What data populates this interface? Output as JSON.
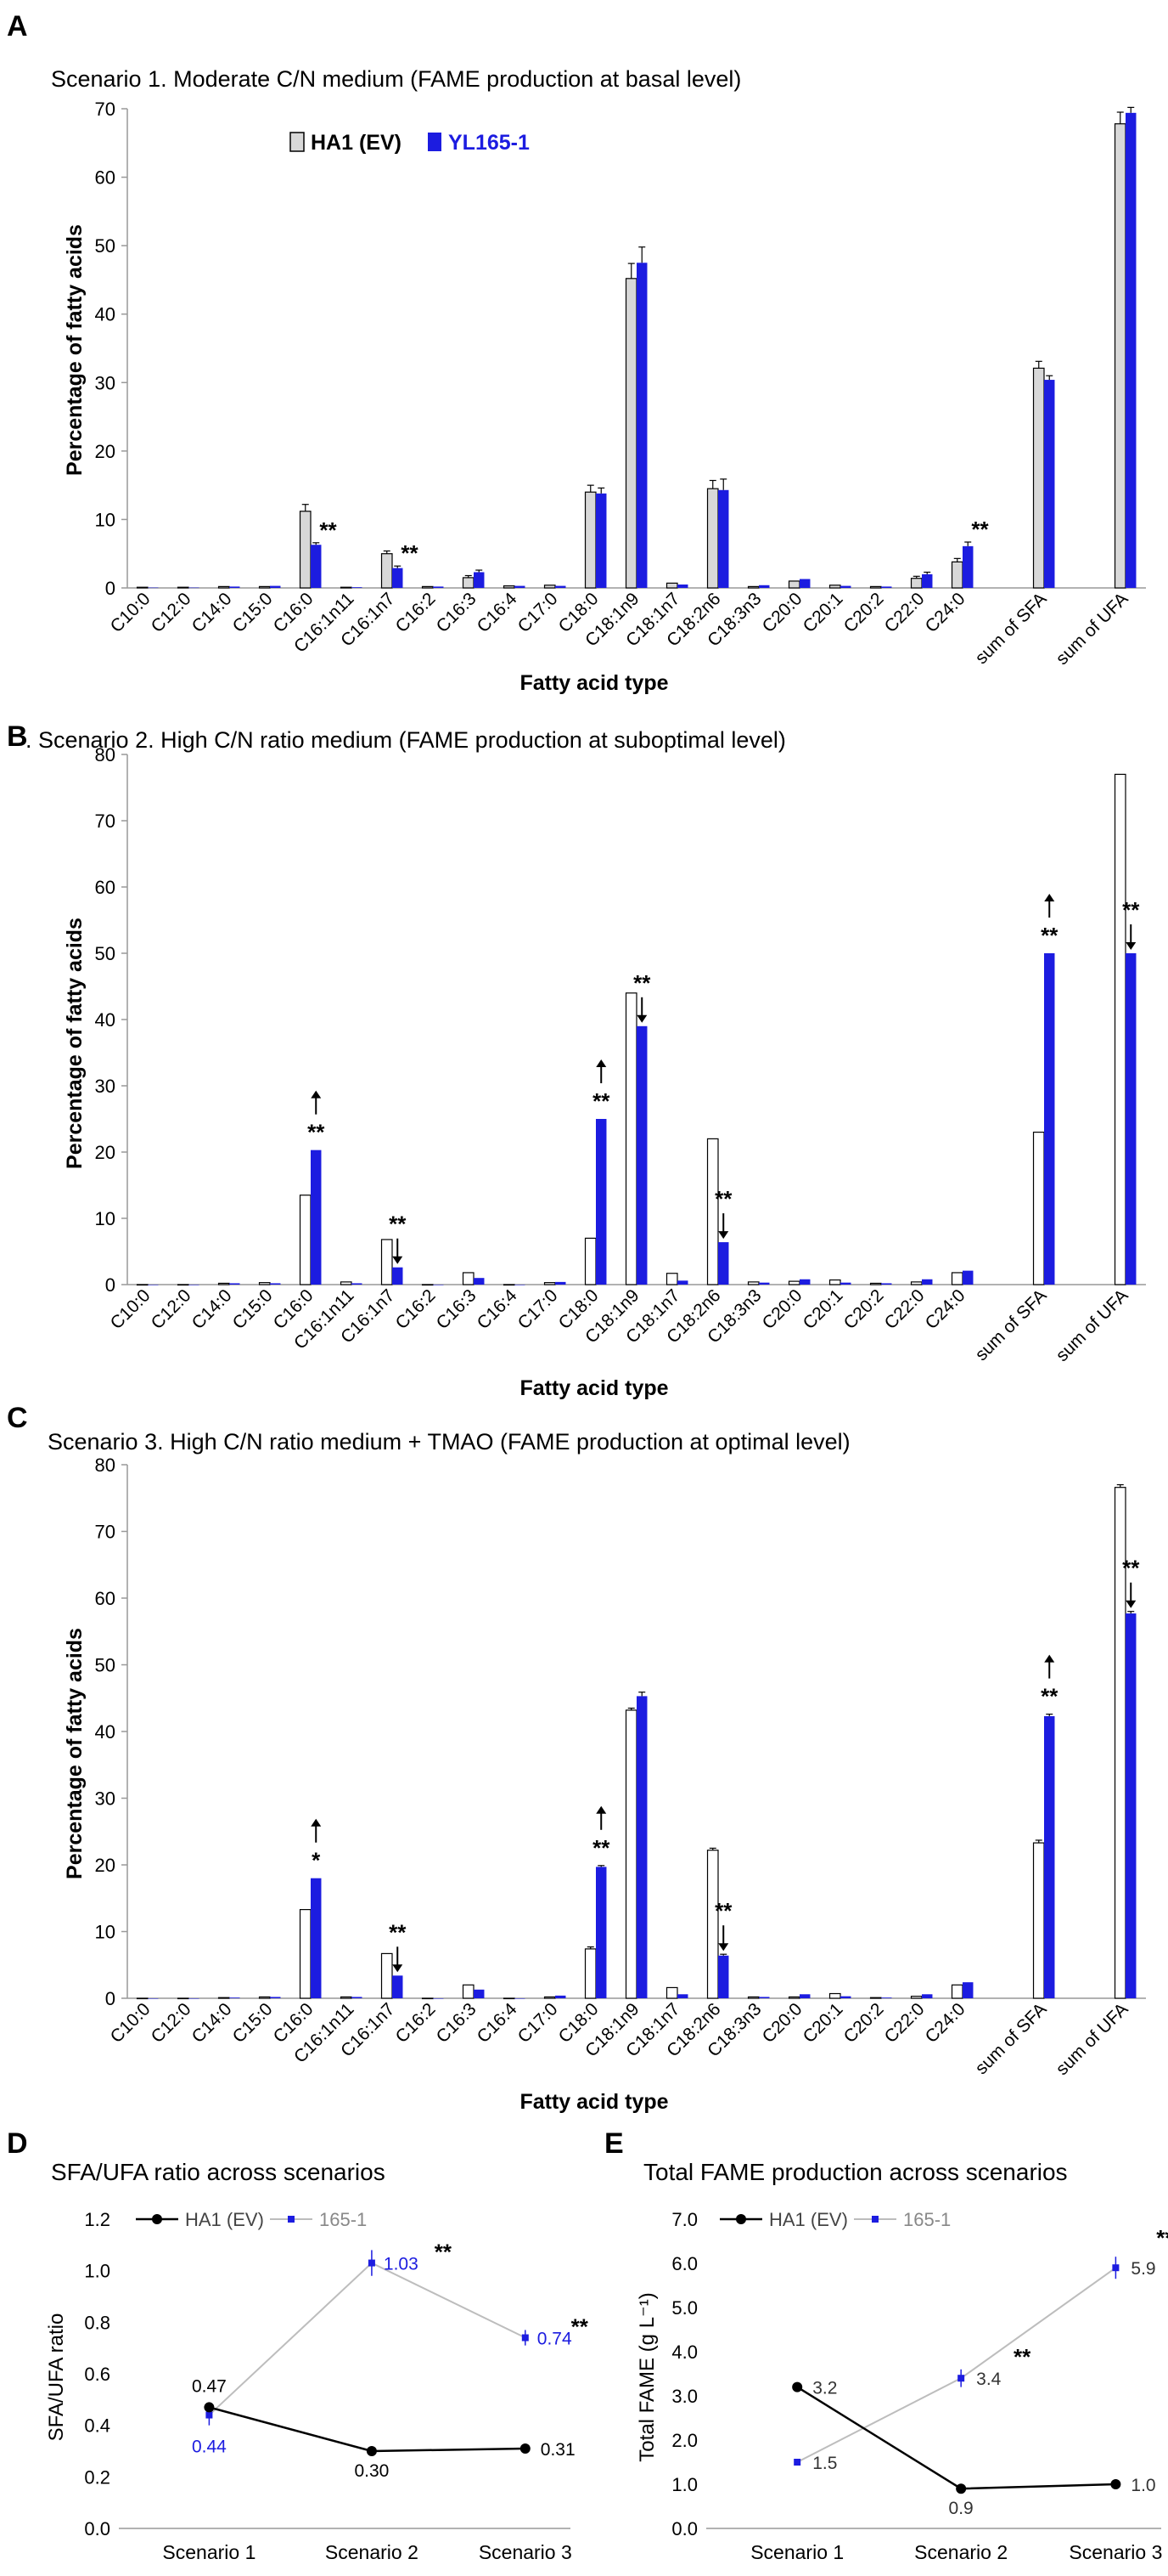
{
  "colors": {
    "ev": "#d8d8d8",
    "mut": "#1c1ce0",
    "line_ev": "#000000",
    "line_mut": "#bdbdbd",
    "mut_label": "#1c1ce0"
  },
  "chart_data": [
    {
      "panel": "A",
      "type": "bar",
      "title": "Scenario 1. Moderate C/N medium (FAME production at basal level)",
      "xlabel": "Fatty acid type",
      "ylabel": "Percentage of fatty acids",
      "ylim": [
        0,
        70
      ],
      "yticks": [
        "0",
        "10",
        "20",
        "30",
        "40",
        "50",
        "60",
        "70"
      ],
      "legend": [
        {
          "name": "HA1 (EV)"
        },
        {
          "name": "YL165-1"
        }
      ],
      "categories": [
        "C10:0",
        "C12:0",
        "C14:0",
        "C15:0",
        "C16:0",
        "C16:1n11",
        "C16:1n7",
        "C16:2",
        "C16:3",
        "C16:4",
        "C17:0",
        "C18:0",
        "C18:1n9",
        "C18:1n7",
        "C18:2n6",
        "C18:3n3",
        "C20:0",
        "C20:1",
        "C20:2",
        "C22:0",
        "C24:0",
        "",
        "sum of SFA",
        "",
        "sum of UFA"
      ],
      "series": [
        {
          "name": "HA1 (EV)",
          "values": [
            0.1,
            0.1,
            0.2,
            0.2,
            11.2,
            0.1,
            5.0,
            0.2,
            1.5,
            0.3,
            0.4,
            14.0,
            45.2,
            0.7,
            14.5,
            0.2,
            1.0,
            0.4,
            0.2,
            1.4,
            3.8,
            null,
            32.1,
            null,
            67.8
          ],
          "errors": [
            0,
            0,
            0,
            0,
            1.0,
            0,
            0.4,
            0,
            0.3,
            0,
            0,
            1.0,
            2.2,
            0,
            1.2,
            0,
            0,
            0,
            0,
            0.3,
            0.5,
            null,
            1.0,
            null,
            1.7
          ]
        },
        {
          "name": "YL165-1",
          "values": [
            0.05,
            0.05,
            0.2,
            0.3,
            6.3,
            0.1,
            2.9,
            0.2,
            2.3,
            0.3,
            0.3,
            13.8,
            47.5,
            0.5,
            14.3,
            0.4,
            1.3,
            0.3,
            0.2,
            2.0,
            6.1,
            null,
            30.4,
            null,
            69.4
          ],
          "errors": [
            0,
            0,
            0,
            0,
            0.3,
            0,
            0.3,
            0,
            0.3,
            0,
            0,
            0.8,
            2.3,
            0,
            1.6,
            0,
            0,
            0,
            0,
            0.3,
            0.6,
            null,
            0.6,
            null,
            0.8
          ]
        }
      ],
      "annotations": [
        {
          "index": 4,
          "text": "**",
          "arrow": null
        },
        {
          "index": 6,
          "text": "**",
          "arrow": null
        },
        {
          "index": 20,
          "text": "**",
          "arrow": null
        }
      ]
    },
    {
      "panel": "B",
      "type": "bar",
      "title": ". Scenario 2. High C/N ratio medium (FAME production at suboptimal level)",
      "xlabel": "Fatty acid type",
      "ylabel": "Percentage of fatty acids",
      "ylim": [
        0,
        80
      ],
      "yticks": [
        "0",
        "10",
        "20",
        "30",
        "40",
        "50",
        "60",
        "70",
        "80"
      ],
      "legend": [],
      "categories": [
        "C10:0",
        "C12:0",
        "C14:0",
        "C15:0",
        "C16:0",
        "C16:1n11",
        "C16:1n7",
        "C16:2",
        "C16:3",
        "C16:4",
        "C17:0",
        "C18:0",
        "C18:1n9",
        "C18:1n7",
        "C18:2n6",
        "C18:3n3",
        "C20:0",
        "C20:1",
        "C20:2",
        "C22:0",
        "C24:0",
        "",
        "sum of SFA",
        "",
        "sum of UFA"
      ],
      "series": [
        {
          "name": "HA1 (EV)",
          "values": [
            0,
            0,
            0.2,
            0.3,
            13.5,
            0.4,
            6.8,
            0,
            1.8,
            0,
            0.3,
            7.0,
            44.0,
            1.7,
            22.0,
            0.4,
            0.5,
            0.7,
            0.2,
            0.4,
            1.8,
            null,
            23.0,
            null,
            77.0
          ],
          "errors": [
            0,
            0,
            0,
            0,
            0,
            0,
            0,
            0,
            0,
            0,
            0,
            0,
            0,
            0,
            0,
            0,
            0,
            0,
            0,
            0,
            0,
            null,
            0,
            null,
            0
          ]
        },
        {
          "name": "YL165-1",
          "values": [
            0,
            0,
            0.2,
            0.2,
            20.3,
            0.2,
            2.6,
            0,
            1.0,
            0,
            0.4,
            25.0,
            39.0,
            0.6,
            6.4,
            0.3,
            0.8,
            0.3,
            0.2,
            0.8,
            2.1,
            null,
            50.0,
            null,
            50.0
          ],
          "errors": [
            0,
            0,
            0,
            0,
            0,
            0,
            0,
            0,
            0,
            0,
            0,
            0,
            0,
            0,
            0,
            0,
            0,
            0,
            0,
            0,
            0,
            null,
            0,
            null,
            0
          ]
        }
      ],
      "annotations": [
        {
          "index": 4,
          "text": "**",
          "arrow": "up"
        },
        {
          "index": 6,
          "text": "**",
          "arrow": "down"
        },
        {
          "index": 11,
          "text": "**",
          "arrow": "up"
        },
        {
          "index": 12,
          "text": "**",
          "arrow": "down"
        },
        {
          "index": 14,
          "text": "**",
          "arrow": "down"
        },
        {
          "index": 22,
          "text": "**",
          "arrow": "up"
        },
        {
          "index": 24,
          "text": "**",
          "arrow": "down"
        }
      ]
    },
    {
      "panel": "C",
      "type": "bar",
      "title": "Scenario 3. High C/N ratio medium + TMAO (FAME production at optimal level)",
      "xlabel": "Fatty acid type",
      "ylabel": "Percentage of fatty acids",
      "ylim": [
        0,
        80
      ],
      "yticks": [
        "0",
        "10",
        "20",
        "30",
        "40",
        "50",
        "60",
        "70",
        "80"
      ],
      "legend": [],
      "categories": [
        "C10:0",
        "C12:0",
        "C14:0",
        "C15:0",
        "C16:0",
        "C16:1n11",
        "C16:1n7",
        "C16:2",
        "C16:3",
        "C16:4",
        "C17:0",
        "C18:0",
        "C18:1n9",
        "C18:1n7",
        "C18:2n6",
        "C18:3n3",
        "C20:0",
        "C20:1",
        "C20:2",
        "C22:0",
        "C24:0",
        "",
        "sum of SFA",
        "",
        "sum of UFA"
      ],
      "series": [
        {
          "name": "HA1 (EV)",
          "values": [
            0,
            0,
            0.1,
            0.2,
            13.3,
            0.2,
            6.7,
            0,
            2.0,
            0,
            0.2,
            7.4,
            43.2,
            1.6,
            22.2,
            0.2,
            0.2,
            0.7,
            0.1,
            0.3,
            2.0,
            null,
            23.3,
            null,
            76.6
          ],
          "errors": [
            0,
            0,
            0,
            0,
            0,
            0,
            0,
            0,
            0,
            0,
            0,
            0.3,
            0.3,
            0,
            0.3,
            0,
            0,
            0,
            0,
            0,
            0,
            null,
            0.4,
            null,
            0.4
          ]
        },
        {
          "name": "YL165-1",
          "values": [
            0,
            0,
            0.1,
            0.2,
            18.0,
            0.2,
            3.4,
            0,
            1.3,
            0,
            0.4,
            19.7,
            45.3,
            0.6,
            6.4,
            0.2,
            0.6,
            0.3,
            0.1,
            0.6,
            2.4,
            null,
            42.3,
            null,
            57.7
          ],
          "errors": [
            0,
            0,
            0,
            0,
            0,
            0,
            0,
            0,
            0,
            0,
            0,
            0.2,
            0.6,
            0,
            0.2,
            0,
            0,
            0,
            0,
            0,
            0,
            null,
            0.3,
            null,
            0.3
          ]
        }
      ],
      "annotations": [
        {
          "index": 4,
          "text": "*",
          "arrow": "up"
        },
        {
          "index": 6,
          "text": "**",
          "arrow": "down"
        },
        {
          "index": 11,
          "text": "**",
          "arrow": "up"
        },
        {
          "index": 14,
          "text": "**",
          "arrow": "down"
        },
        {
          "index": 22,
          "text": "**",
          "arrow": "up"
        },
        {
          "index": 24,
          "text": "**",
          "arrow": "down"
        }
      ]
    },
    {
      "panel": "D",
      "type": "line",
      "title": "SFA/UFA ratio across scenarios",
      "xlabel": "",
      "ylabel": "SFA/UFA ratio",
      "categories": [
        "Scenario 1",
        "Scenario 2",
        "Scenario 3"
      ],
      "ylim": [
        0,
        1.2
      ],
      "yticks": [
        "0.0",
        "0.2",
        "0.4",
        "0.6",
        "0.8",
        "1.0",
        "1.2"
      ],
      "legend": [
        {
          "name": "HA1 (EV)"
        },
        {
          "name": "165-1"
        }
      ],
      "series": [
        {
          "name": "HA1 (EV)",
          "values": [
            0.47,
            0.3,
            0.31
          ],
          "labels": [
            "0.47",
            "0.30",
            "0.31"
          ],
          "errors": [
            0,
            0,
            0
          ]
        },
        {
          "name": "165-1",
          "values": [
            0.44,
            1.03,
            0.74
          ],
          "labels": [
            "0.44",
            "1.03",
            "0.74"
          ],
          "errors": [
            0.04,
            0.05,
            0.03
          ]
        }
      ],
      "annotations": [
        {
          "index": 1,
          "text": "**"
        },
        {
          "index": 2,
          "text": "**"
        }
      ]
    },
    {
      "panel": "E",
      "type": "line",
      "title": "Total FAME production across scenarios",
      "xlabel": "",
      "ylabel": "Total FAME (g L⁻¹)",
      "categories": [
        "Scenario 1",
        "Scenario 2",
        "Scenario 3"
      ],
      "ylim": [
        0,
        7.0
      ],
      "yticks": [
        "0.0",
        "1.0",
        "2.0",
        "3.0",
        "4.0",
        "5.0",
        "6.0",
        "7.0"
      ],
      "legend": [
        {
          "name": "HA1 (EV)"
        },
        {
          "name": "165-1"
        }
      ],
      "series": [
        {
          "name": "HA1 (EV)",
          "values": [
            3.2,
            0.9,
            1.0
          ],
          "labels": [
            "3.2",
            "0.9",
            "1.0"
          ],
          "errors": [
            0.1,
            0,
            0
          ]
        },
        {
          "name": "165-1",
          "values": [
            1.5,
            3.4,
            5.9
          ],
          "labels": [
            "1.5",
            "3.4",
            "5.9"
          ],
          "errors": [
            0,
            0.2,
            0.25
          ]
        }
      ],
      "annotations": [
        {
          "index": 1,
          "text": "**"
        },
        {
          "index": 2,
          "text": "**"
        }
      ]
    }
  ]
}
